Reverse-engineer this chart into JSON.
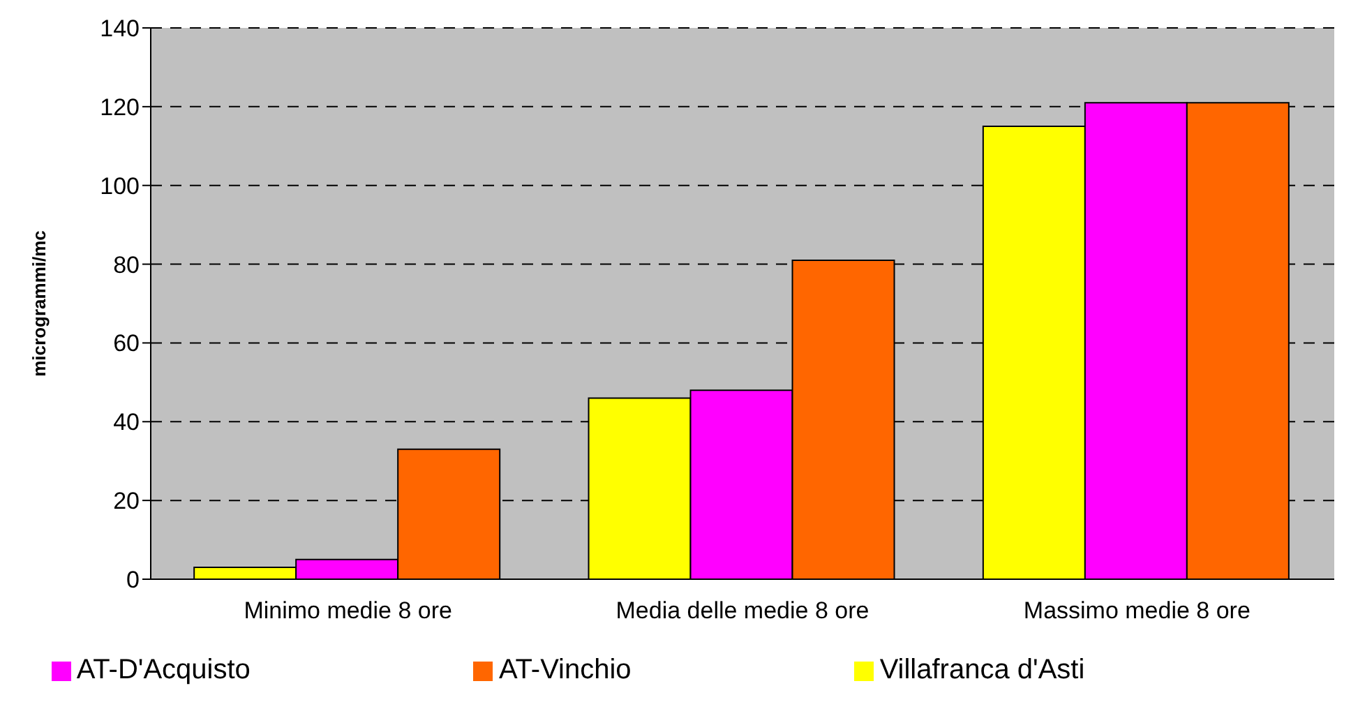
{
  "chart_data": {
    "type": "bar",
    "ylabel": "microgrammi/mc",
    "categories": [
      "Minimo medie 8 ore",
      "Media delle medie 8 ore",
      "Massimo medie 8 ore"
    ],
    "series": [
      {
        "name": "Villafranca d'Asti",
        "color": "#ffff00",
        "values": [
          3,
          46,
          115
        ]
      },
      {
        "name": "AT-D'Acquisto",
        "color": "#ff00ff",
        "values": [
          5,
          48,
          121
        ]
      },
      {
        "name": "AT-Vinchio",
        "color": "#ff6600",
        "values": [
          33,
          81,
          121
        ]
      }
    ],
    "ylim": [
      0,
      140
    ],
    "yticks": [
      0,
      20,
      40,
      60,
      80,
      100,
      120,
      140
    ],
    "grid": "y",
    "legend": "bottom"
  }
}
